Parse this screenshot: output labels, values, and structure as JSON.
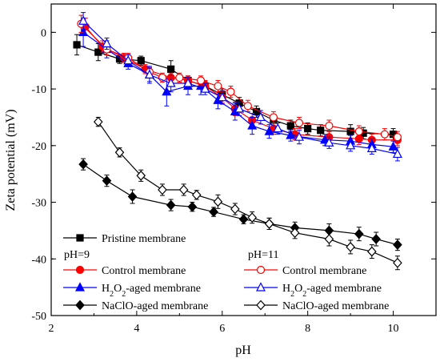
{
  "chart_data": {
    "type": "line",
    "xlabel": "pH",
    "ylabel": "Zeta potential (mV)",
    "xlim": [
      2,
      11
    ],
    "ylim": [
      -50,
      5
    ],
    "x_ticks": [
      2,
      4,
      6,
      8,
      10
    ],
    "y_ticks": [
      0,
      -10,
      -20,
      -30,
      -40,
      -50
    ],
    "legend_headers": [
      "pH=9",
      "pH=11"
    ],
    "series": [
      {
        "name": "Pristine membrane",
        "color": "#000000",
        "marker": "square",
        "filled": true,
        "x": [
          2.6,
          3.1,
          3.6,
          4.1,
          4.8,
          5.2,
          5.6,
          6.0,
          6.4,
          6.8,
          7.2,
          7.6,
          8.0,
          8.3,
          9.0,
          9.3,
          10.0
        ],
        "y": [
          -2.2,
          -3.5,
          -4.7,
          -5.0,
          -6.5,
          -8.5,
          -9.5,
          -11.0,
          -12.5,
          -14.0,
          -15.5,
          -16.5,
          -17.0,
          -17.3,
          -17.5,
          -17.8,
          -18.0
        ],
        "err": [
          1.8,
          1.5,
          0.8,
          0.8,
          1.5,
          0.8,
          0.8,
          1.0,
          1.0,
          1.0,
          1.0,
          1.0,
          1.0,
          1.0,
          1.2,
          1.0,
          1.0
        ]
      },
      {
        "name": "Control membrane",
        "group": "pH=9",
        "color": "#ff0000",
        "marker": "circle",
        "filled": true,
        "x": [
          2.8,
          3.2,
          3.7,
          4.2,
          4.8,
          5.2,
          5.6,
          6.0,
          6.3,
          6.7,
          7.2,
          7.7,
          8.5,
          9.2,
          9.5,
          10.1
        ],
        "y": [
          1.0,
          -2.5,
          -4.5,
          -6.5,
          -8.0,
          -8.5,
          -9.5,
          -11.5,
          -13.5,
          -15.5,
          -17.0,
          -18.0,
          -18.5,
          -18.8,
          -19.0,
          -19.0
        ],
        "err": [
          1.5,
          1.0,
          0.8,
          0.8,
          0.8,
          0.8,
          1.0,
          1.0,
          1.2,
          1.2,
          1.0,
          1.0,
          1.0,
          1.0,
          1.0,
          1.0
        ]
      },
      {
        "name": "H2O2-aged membrane",
        "group": "pH=9",
        "color": "#0000ff",
        "marker": "triangle",
        "filled": true,
        "x": [
          2.75,
          3.3,
          3.8,
          4.3,
          4.7,
          5.2,
          5.5,
          5.9,
          6.3,
          6.7,
          7.1,
          7.6,
          8.4,
          9.0,
          9.5,
          10.0
        ],
        "y": [
          0.0,
          -3.0,
          -5.5,
          -7.5,
          -10.5,
          -9.5,
          -9.5,
          -12.0,
          -14.0,
          -16.5,
          -17.5,
          -18.2,
          -19.0,
          -19.2,
          -19.8,
          -20.2
        ],
        "err": [
          2.5,
          1.5,
          1.0,
          1.5,
          2.5,
          1.5,
          1.5,
          1.5,
          1.5,
          1.5,
          1.2,
          1.0,
          1.0,
          1.0,
          1.0,
          1.0
        ]
      },
      {
        "name": "NaClO-aged membrane",
        "group": "pH=9",
        "color": "#000000",
        "marker": "diamond",
        "filled": true,
        "x": [
          2.75,
          3.3,
          3.9,
          4.8,
          5.3,
          5.8,
          6.5,
          7.1,
          7.7,
          8.5,
          9.2,
          9.6,
          10.1
        ],
        "y": [
          -23.3,
          -26.2,
          -29.0,
          -30.5,
          -30.8,
          -31.7,
          -33.0,
          -33.8,
          -34.5,
          -35.0,
          -35.6,
          -36.5,
          -37.5
        ],
        "err": [
          1.0,
          1.0,
          1.2,
          1.0,
          0.8,
          0.8,
          0.8,
          1.0,
          1.0,
          1.2,
          1.2,
          1.2,
          1.0
        ]
      },
      {
        "name": "Control membrane",
        "group": "pH=11",
        "color": "#ff0000",
        "marker": "circle",
        "filled": false,
        "x": [
          2.7,
          3.3,
          3.8,
          4.3,
          4.6,
          5.0,
          5.5,
          5.9,
          6.2,
          6.6,
          7.2,
          7.8,
          8.5,
          9.2,
          9.8,
          10.1
        ],
        "y": [
          1.5,
          -3.0,
          -4.5,
          -7.0,
          -8.0,
          -8.0,
          -8.5,
          -9.5,
          -10.5,
          -13.0,
          -15.0,
          -16.0,
          -16.5,
          -17.5,
          -18.0,
          -18.5
        ],
        "err": [
          1.5,
          1.0,
          0.8,
          0.8,
          0.8,
          0.8,
          0.8,
          1.0,
          1.0,
          1.0,
          1.0,
          1.0,
          1.0,
          1.0,
          1.0,
          1.0
        ]
      },
      {
        "name": "H2O2-aged membrane",
        "group": "pH=11",
        "color": "#0000ff",
        "marker": "triangle",
        "filled": false,
        "x": [
          2.75,
          3.3,
          3.8,
          4.3,
          4.8,
          5.2,
          5.6,
          6.0,
          6.4,
          6.9,
          7.3,
          7.8,
          8.5,
          9.0,
          9.5,
          10.1
        ],
        "y": [
          2.0,
          -2.0,
          -5.0,
          -7.5,
          -9.0,
          -9.0,
          -10.0,
          -11.5,
          -13.5,
          -15.0,
          -17.0,
          -18.5,
          -19.5,
          -20.0,
          -20.5,
          -21.5
        ],
        "err": [
          1.5,
          1.0,
          1.0,
          1.2,
          1.5,
          1.0,
          1.0,
          1.2,
          1.2,
          1.2,
          1.0,
          1.2,
          1.0,
          1.0,
          1.0,
          1.2
        ]
      },
      {
        "name": "NaClO-aged membrane",
        "group": "pH=11",
        "color": "#000000",
        "marker": "diamond",
        "filled": false,
        "x": [
          3.1,
          3.6,
          4.1,
          4.6,
          5.1,
          5.4,
          5.9,
          6.3,
          6.7,
          7.1,
          7.7,
          8.5,
          9.0,
          9.5,
          10.1
        ],
        "y": [
          -15.8,
          -21.2,
          -25.3,
          -27.8,
          -27.8,
          -28.7,
          -29.9,
          -31.2,
          -32.7,
          -33.8,
          -35.4,
          -36.5,
          -37.9,
          -38.7,
          -40.7
        ],
        "err": [
          0.8,
          0.8,
          1.0,
          1.0,
          1.0,
          0.8,
          1.2,
          1.0,
          1.0,
          1.0,
          1.0,
          1.2,
          1.2,
          1.2,
          1.2
        ]
      }
    ]
  }
}
